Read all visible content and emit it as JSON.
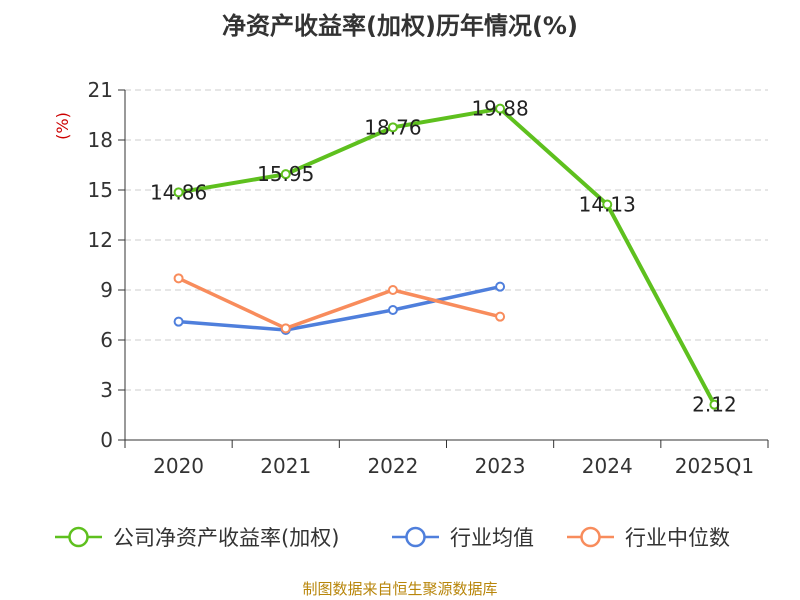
{
  "colors": {
    "company": "#5ec01e",
    "industry_avg": "#4f7fdc",
    "industry_median": "#f88c5c",
    "grid": "#cccccc",
    "axis": "#333333",
    "ylabel": "#cc0000",
    "source": "#b8860b"
  },
  "chart_data": {
    "type": "line",
    "title": "净资产收益率(加权)历年情况(%)",
    "ylabel": "(%)",
    "xlabel": "",
    "categories": [
      "2020",
      "2021",
      "2022",
      "2023",
      "2024",
      "2025Q1"
    ],
    "ylim": [
      0,
      21
    ],
    "yticks": [
      "0",
      "3",
      "6",
      "9",
      "12",
      "15",
      "18",
      "21"
    ],
    "grid": "horizontal dashed",
    "legend_position": "bottom",
    "series": [
      {
        "name": "公司净资产收益率(加权)",
        "values": [
          14.86,
          15.95,
          18.76,
          19.88,
          14.13,
          2.12
        ],
        "labels": [
          "14.86",
          "15.95",
          "18.76",
          "19.88",
          "14.13",
          "2.12"
        ],
        "color_key": "company"
      },
      {
        "name": "行业均值",
        "values": [
          7.1,
          6.6,
          7.8,
          9.2,
          null,
          null
        ],
        "color_key": "industry_avg"
      },
      {
        "name": "行业中位数",
        "values": [
          9.7,
          6.7,
          9.0,
          7.4,
          null,
          null
        ],
        "color_key": "industry_median"
      }
    ]
  },
  "source": "制图数据来自恒生聚源数据库"
}
